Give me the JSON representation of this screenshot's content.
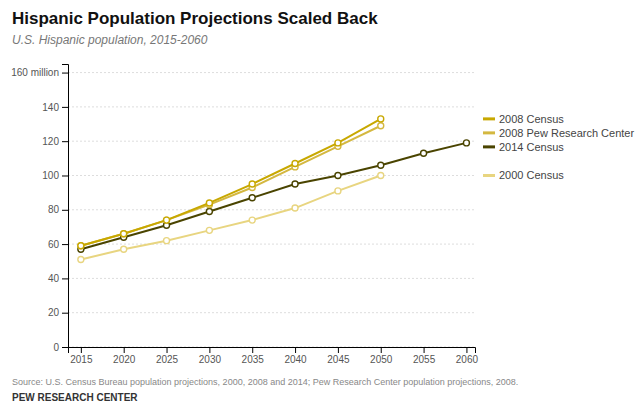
{
  "chart_data": {
    "type": "line",
    "title": "Hispanic Population Projections Scaled Back",
    "subtitle": "U.S. Hispanic population, 2015-2060",
    "source": "Source: U.S. Census Bureau population projections, 2000, 2008 and 2014; Pew Research Center population projections, 2008.",
    "footer": "PEW RESEARCH CENTER",
    "x": [
      2015,
      2020,
      2025,
      2030,
      2035,
      2040,
      2045,
      2050,
      2055,
      2060
    ],
    "series": [
      {
        "name": "2000 Census",
        "color": "#e8d580",
        "values": [
          51,
          57,
          62,
          68,
          74,
          81,
          91,
          100,
          null,
          null
        ]
      },
      {
        "name": "2014 Census",
        "color": "#4a4400",
        "values": [
          57,
          64,
          71,
          79,
          87,
          95,
          100,
          106,
          113,
          119
        ]
      },
      {
        "name": "2008 Pew Research Center",
        "color": "#d4b840",
        "values": [
          59,
          66,
          74,
          83,
          93,
          105,
          117,
          129,
          null,
          null
        ]
      },
      {
        "name": "2008 Census",
        "color": "#c8a800",
        "values": [
          59,
          66,
          74,
          84,
          95,
          107,
          119,
          133,
          null,
          null
        ]
      }
    ],
    "xlim": [
      2013.5,
      2061
    ],
    "xticks": [
      2015,
      2020,
      2025,
      2030,
      2035,
      2040,
      2045,
      2050,
      2055,
      2060
    ],
    "ylim": [
      0,
      165
    ],
    "yticks": [
      0,
      20,
      40,
      60,
      80,
      100,
      120,
      140,
      {
        "value": 160,
        "label": "160 million"
      }
    ],
    "grid": true,
    "marker": "circle"
  }
}
